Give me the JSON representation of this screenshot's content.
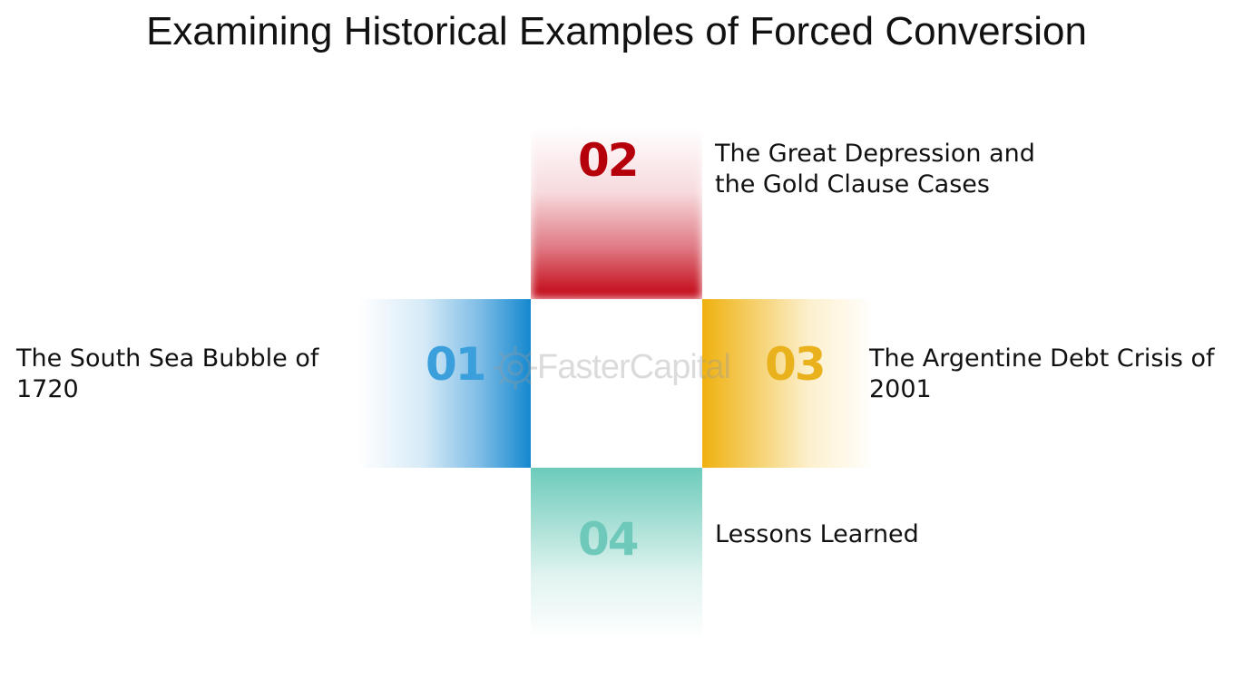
{
  "title": "Examining Historical Examples of Forced Conversion",
  "items": [
    {
      "number": "01",
      "label": "The South Sea Bubble of\n1720",
      "color": "#1488cf"
    },
    {
      "number": "02",
      "label": "The Great Depression and\nthe Gold Clause Cases",
      "color": "#c1000f"
    },
    {
      "number": "03",
      "label": "The Argentine Debt Crisis of\n2001",
      "color": "#efb10f"
    },
    {
      "number": "04",
      "label": "Lessons Learned",
      "color": "#6ccbbb"
    }
  ],
  "watermark": {
    "text": "FasterCapital",
    "icon": "gear-icon"
  }
}
